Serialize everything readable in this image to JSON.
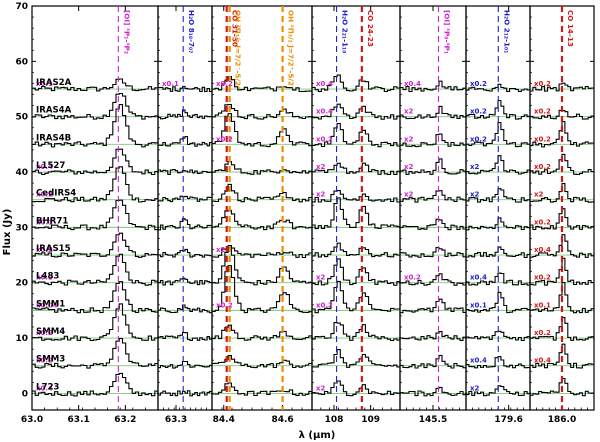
{
  "chart_data": {
    "type": "line",
    "title": "",
    "ylabel": "Flux (Jy)",
    "xlabel": "λ (μm)",
    "ylim": [
      -3,
      70
    ],
    "yticks": [
      0,
      10,
      20,
      30,
      40,
      50,
      60,
      70
    ],
    "grid": false,
    "panels": [
      {
        "id": "p1",
        "xlim": [
          63.0,
          63.27
        ],
        "xticks": [
          {
            "v": 63.0,
            "label": "63.0"
          },
          {
            "v": 63.1,
            "label": "63.1"
          },
          {
            "v": 63.2,
            "label": "63.2"
          }
        ],
        "lines": [
          {
            "x": 63.185,
            "label": "[OI] ³P₁-³P₂",
            "color": "#d020d0",
            "style": "dash"
          }
        ],
        "scale_color": "#d020d0"
      },
      {
        "id": "p2",
        "xlim": [
          63.24,
          63.42
        ],
        "xticks": [
          {
            "v": 63.3,
            "label": "63.3"
          }
        ],
        "lines": [
          {
            "x": 63.324,
            "label": "H₂O 8₁₈-7₀₇",
            "color": "#2020d0",
            "style": "dash"
          }
        ],
        "scale_color": "#d020d0"
      },
      {
        "id": "p3",
        "xlim": [
          84.36,
          84.7
        ],
        "xticks": [
          {
            "v": 84.4,
            "label": "84.4"
          },
          {
            "v": 84.6,
            "label": "84.6"
          }
        ],
        "lines": [
          {
            "x": 84.41,
            "label": "CO 31-30",
            "color": "#d01818",
            "style": "dash"
          },
          {
            "x": 84.42,
            "label": "OH ²Π₃/₂ J=7/2⁻-5/2⁺",
            "color": "#f08c00",
            "style": "dash"
          },
          {
            "x": 84.6,
            "label": "OH ²Π₃/₂ J=7/2⁺-5/2⁻",
            "color": "#f08c00",
            "style": "dash"
          }
        ],
        "scale_color": "#d020d0"
      },
      {
        "id": "p4",
        "xlim": [
          107.4,
          109.8
        ],
        "xticks": [
          {
            "v": 108.0,
            "label": "108"
          },
          {
            "v": 109.0,
            "label": "109"
          }
        ],
        "lines": [
          {
            "x": 108.07,
            "label": "H₂O 2₂₁-1₁₀",
            "color": "#2020d0",
            "style": "dash"
          },
          {
            "x": 108.76,
            "label": "CO 24-23",
            "color": "#d01818",
            "style": "dash"
          }
        ],
        "scale_color": "#d020d0"
      },
      {
        "id": "p5",
        "xlim": [
          145.35,
          145.65
        ],
        "xticks": [
          {
            "v": 145.5,
            "label": "145.5"
          }
        ],
        "lines": [
          {
            "x": 145.525,
            "label": "[OI] ³P₀-³P₁",
            "color": "#d020d0",
            "style": "dash"
          }
        ],
        "scale_color": "#d020d0"
      },
      {
        "id": "p6",
        "xlim": [
          179.3,
          179.75
        ],
        "xticks": [
          {
            "v": 179.6,
            "label": "179.6"
          }
        ],
        "lines": [
          {
            "x": 179.527,
            "label": "H₂O 2₁₂-1₀₁",
            "color": "#2020d0",
            "style": "dash"
          }
        ],
        "scale_color": "#2020d0"
      },
      {
        "id": "p7",
        "xlim": [
          185.7,
          186.3
        ],
        "xticks": [
          {
            "v": 186.0,
            "label": "186.0"
          }
        ],
        "lines": [
          {
            "x": 186.0,
            "label": "CO 14-13",
            "color": "#d01818",
            "style": "dash"
          }
        ],
        "scale_color": "#d01818"
      }
    ],
    "sources": [
      {
        "name": "IRAS2A",
        "offset": 55,
        "scales": [
          "x0.1",
          "x0.1",
          "x0.2",
          "x0.4",
          "x0.4",
          "x0.2",
          "x0.2"
        ],
        "amps": [
          1.5,
          0.6,
          1.2,
          2.5,
          1.2,
          1.0,
          0.8
        ]
      },
      {
        "name": "IRAS4A",
        "offset": 50,
        "scales": [
          "",
          "",
          "",
          "x0.4",
          "x2",
          "x0.2",
          "x0.2"
        ],
        "amps": [
          4.5,
          1.0,
          1.5,
          2.5,
          1.5,
          2.5,
          1.5
        ]
      },
      {
        "name": "IRAS4B",
        "offset": 45,
        "scales": [
          "",
          "",
          "x0.2",
          "x0.2",
          "x2",
          "x0.2",
          "x0.2"
        ],
        "amps": [
          7,
          1.5,
          3.5,
          3.5,
          2,
          4,
          4
        ]
      },
      {
        "name": "L1527",
        "offset": 40,
        "scales": [
          "x0.4",
          "",
          "",
          "x2",
          "x2",
          "x2",
          "x0.2"
        ],
        "amps": [
          4,
          0.6,
          1,
          2,
          2,
          3,
          3
        ]
      },
      {
        "name": "CedIRS4",
        "offset": 35,
        "scales": [
          "x0.2",
          "",
          "",
          "x2",
          "x2",
          "x2",
          "x2"
        ],
        "amps": [
          6,
          1,
          1.5,
          1.5,
          2,
          2,
          2.5
        ]
      },
      {
        "name": "BHR71",
        "offset": 30,
        "scales": [
          "x0.1",
          "",
          "",
          "",
          "",
          "",
          "x0.2"
        ],
        "amps": [
          5,
          1.5,
          2,
          5,
          1.5,
          1.5,
          3.5
        ]
      },
      {
        "name": "IRAS15",
        "offset": 25,
        "scales": [
          "x0.2",
          "",
          "x2",
          "",
          "",
          "",
          "x0.4"
        ],
        "amps": [
          4,
          1,
          1,
          2,
          1.5,
          1,
          3.5
        ]
      },
      {
        "name": "L483",
        "offset": 20,
        "scales": [
          "x0.2",
          "",
          "",
          "x2",
          "x0.2",
          "x0.4",
          "x0.2"
        ],
        "amps": [
          5,
          1,
          4,
          4,
          2,
          2,
          4
        ]
      },
      {
        "name": "SMM1",
        "offset": 15,
        "scales": [
          "x0.04",
          "",
          "x0.2",
          "x0.2",
          "",
          "x0.1",
          "x0.1"
        ],
        "amps": [
          5,
          0.8,
          5,
          5,
          2,
          3,
          5
        ]
      },
      {
        "name": "SMM4",
        "offset": 10,
        "scales": [
          "x0.2",
          "",
          "",
          "",
          "",
          "",
          "x0.2"
        ],
        "amps": [
          6,
          0.8,
          1.5,
          3,
          1,
          1.5,
          4
        ]
      },
      {
        "name": "SMM3",
        "offset": 5,
        "scales": [
          "x0.2",
          "",
          "",
          "",
          "",
          "x0.4",
          "x0.4"
        ],
        "amps": [
          5,
          0.8,
          1,
          2.5,
          1.5,
          2,
          4
        ]
      },
      {
        "name": "L723",
        "offset": 0,
        "scales": [
          "x0.4",
          "",
          "",
          "x2",
          "",
          "x2",
          ""
        ],
        "amps": [
          3.5,
          0.6,
          1,
          2,
          1,
          1.5,
          2.5
        ]
      }
    ]
  }
}
